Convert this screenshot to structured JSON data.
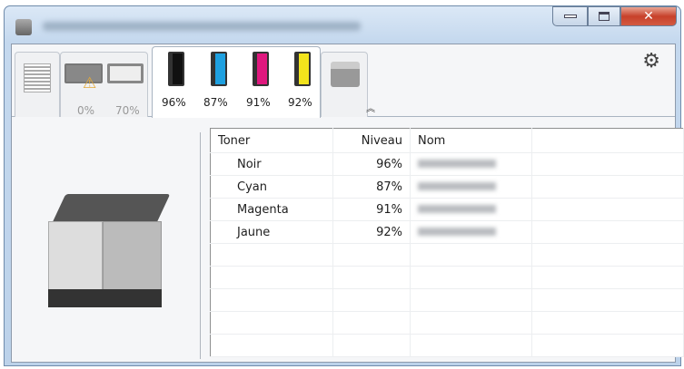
{
  "window": {
    "controls": {
      "minimize": "minimize",
      "maximize": "maximize",
      "close": "close"
    }
  },
  "tabs": [
    {
      "name": "paper-stack",
      "label": ""
    },
    {
      "name": "trays",
      "items": [
        {
          "label": "0%",
          "warning": true
        },
        {
          "label": "70%",
          "warning": false
        }
      ]
    },
    {
      "name": "toner",
      "active": true,
      "items": [
        {
          "label": "96%",
          "color": "#111111"
        },
        {
          "label": "87%",
          "color": "#1ea0e0"
        },
        {
          "label": "91%",
          "color": "#e0187e"
        },
        {
          "label": "92%",
          "color": "#f2e31c"
        }
      ]
    },
    {
      "name": "device",
      "label": ""
    }
  ],
  "table": {
    "headers": [
      "Toner",
      "Niveau",
      "Nom"
    ],
    "rows": [
      {
        "toner": "Noir",
        "niveau": "96%"
      },
      {
        "toner": "Cyan",
        "niveau": "87%"
      },
      {
        "toner": "Magenta",
        "niveau": "91%"
      },
      {
        "toner": "Jaune",
        "niveau": "92%"
      }
    ]
  }
}
